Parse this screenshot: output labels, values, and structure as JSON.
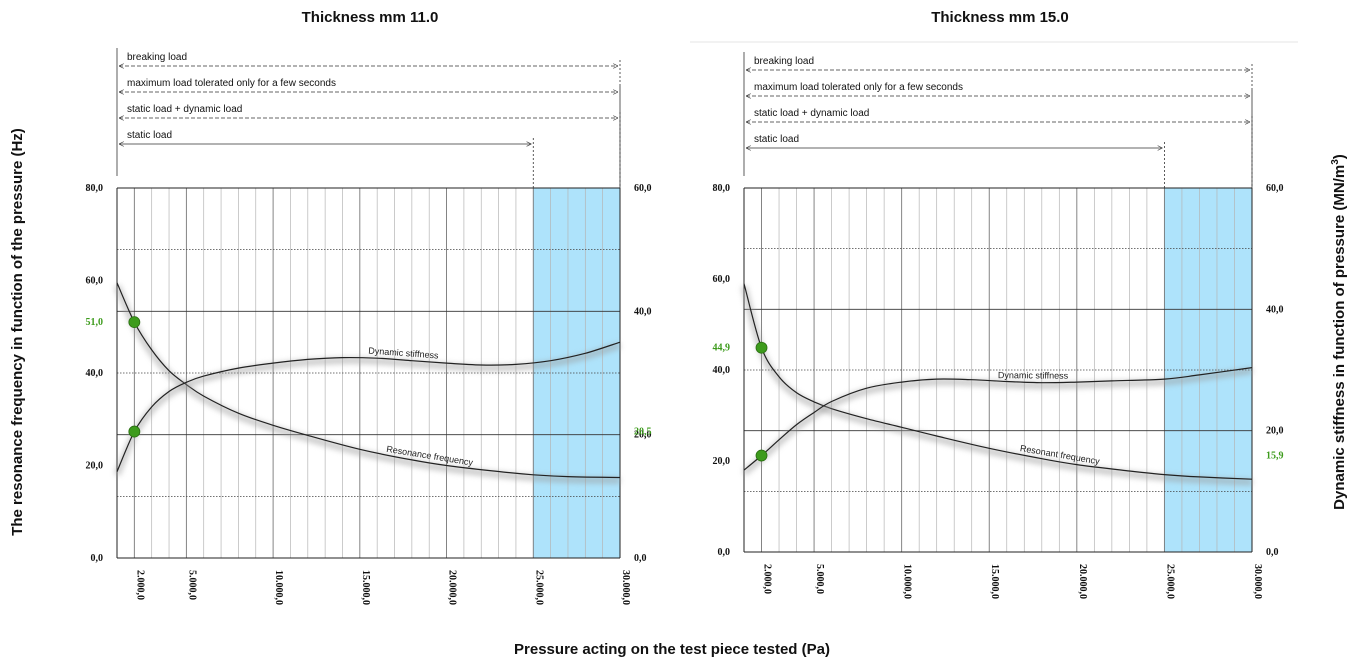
{
  "axis_titles": {
    "left": "The resonance frequency in function of the pressure (Hz)",
    "right": "Dynamic stiffness in function of pressure (MN/m³)",
    "bottom": "Pressure acting on the test piece tested (Pa)"
  },
  "colors": {
    "highlight": "#aee3fb",
    "marker": "#3d9b1c",
    "highlight_text": "#3d9b1c",
    "curve": "#222222"
  },
  "chart_data": [
    {
      "type": "line",
      "title": "Thickness mm 11.0",
      "x_ticks": [
        "2.000,0",
        "5.000,0",
        "10.000,0",
        "15.000,0",
        "20.000,0",
        "25.000,0",
        "30.000,0"
      ],
      "x_tick_values": [
        2000,
        5000,
        10000,
        15000,
        20000,
        25000,
        30000
      ],
      "xlim": [
        1000,
        30000
      ],
      "highlight_x_tick": "2.000,0",
      "left_axis": {
        "ticks": [
          "0,0",
          "20,0",
          "40,0",
          "60,0",
          "80,0"
        ],
        "ylim": [
          0,
          80
        ]
      },
      "right_axis": {
        "ticks": [
          "0,0",
          "20,0",
          "40,0",
          "60,0"
        ],
        "ylim": [
          0,
          60
        ]
      },
      "shaded_region": [
        25000,
        30000
      ],
      "load_bars": [
        {
          "label": "breaking load",
          "end_x": 30000
        },
        {
          "label": "maximum load tolerated only for a few seconds",
          "end_x": 30000
        },
        {
          "label": "static load + dynamic load",
          "end_x": 30000
        },
        {
          "label": "static load",
          "end_x": 25000
        }
      ],
      "series": [
        {
          "name": "Resonance frequency",
          "axis": "left",
          "x": [
            1000,
            2000,
            3000,
            4000,
            5000,
            6000,
            8000,
            10000,
            12000,
            15000,
            18000,
            20000,
            23000,
            25000,
            27000,
            30000
          ],
          "y": [
            59.5,
            51.0,
            45.0,
            40.5,
            37.5,
            35.0,
            31.3,
            28.7,
            26.5,
            23.5,
            21.2,
            20.0,
            18.7,
            18.0,
            17.6,
            17.4
          ]
        },
        {
          "name": "Dynamic stiffness",
          "axis": "right",
          "x": [
            1000,
            2000,
            3000,
            4000,
            5000,
            6000,
            8000,
            10000,
            12000,
            14000,
            16000,
            18000,
            20000,
            22000,
            24000,
            26000,
            28000,
            30000
          ],
          "y": [
            14.0,
            20.5,
            24.5,
            27.0,
            28.5,
            29.5,
            30.8,
            31.6,
            32.2,
            32.5,
            32.4,
            32.0,
            31.6,
            31.3,
            31.4,
            32.0,
            33.2,
            35.0
          ]
        }
      ],
      "markers": [
        {
          "axis": "left",
          "x": 2000,
          "y": 51.0,
          "label": "51,0"
        },
        {
          "axis": "right",
          "x": 2000,
          "y": 20.5,
          "label": "20,5"
        }
      ]
    },
    {
      "type": "line",
      "title": "Thickness mm 15.0",
      "x_ticks": [
        "2.000,0",
        "5.000,0",
        "10.000,0",
        "15.000,0",
        "20.000,0",
        "25.000,0",
        "30.000,0"
      ],
      "x_tick_values": [
        2000,
        5000,
        10000,
        15000,
        20000,
        25000,
        30000
      ],
      "xlim": [
        1000,
        30000
      ],
      "highlight_x_tick": "2.000,0",
      "left_axis": {
        "ticks": [
          "0,0",
          "20,0",
          "40,0",
          "60,0",
          "80,0"
        ],
        "ylim": [
          0,
          80
        ]
      },
      "right_axis": {
        "ticks": [
          "0,0",
          "20,0",
          "40,0",
          "60,0"
        ],
        "ylim": [
          0,
          60
        ]
      },
      "shaded_region": [
        25000,
        30000
      ],
      "load_bars": [
        {
          "label": "breaking load",
          "end_x": 30000
        },
        {
          "label": "maximum load tolerated only for a few seconds",
          "end_x": 30000
        },
        {
          "label": "static load + dynamic load",
          "end_x": 30000
        },
        {
          "label": "static load",
          "end_x": 25000
        }
      ],
      "series": [
        {
          "name": "Resonant frequency",
          "axis": "left",
          "x": [
            1000,
            2000,
            3000,
            4000,
            5000,
            6000,
            8000,
            10000,
            12000,
            15000,
            18000,
            20000,
            23000,
            25000,
            27000,
            30000
          ],
          "y": [
            59.0,
            44.9,
            38.5,
            35.0,
            33.0,
            31.5,
            29.3,
            27.4,
            25.5,
            22.8,
            20.5,
            19.2,
            17.8,
            17.0,
            16.5,
            16.0
          ]
        },
        {
          "name": "Dynamic stiffness",
          "axis": "right",
          "x": [
            1000,
            2000,
            3000,
            4000,
            5000,
            6000,
            8000,
            10000,
            12000,
            14000,
            16000,
            18000,
            20000,
            22000,
            25000,
            27000,
            30000
          ],
          "y": [
            13.5,
            15.9,
            18.5,
            21.0,
            23.0,
            24.8,
            27.0,
            28.0,
            28.5,
            28.4,
            28.1,
            27.9,
            28.0,
            28.2,
            28.5,
            29.2,
            30.4
          ]
        }
      ],
      "markers": [
        {
          "axis": "left",
          "x": 2000,
          "y": 44.9,
          "label": "44,9"
        },
        {
          "axis": "right",
          "x": 2000,
          "y": 15.9,
          "label": "15,9"
        }
      ]
    }
  ]
}
